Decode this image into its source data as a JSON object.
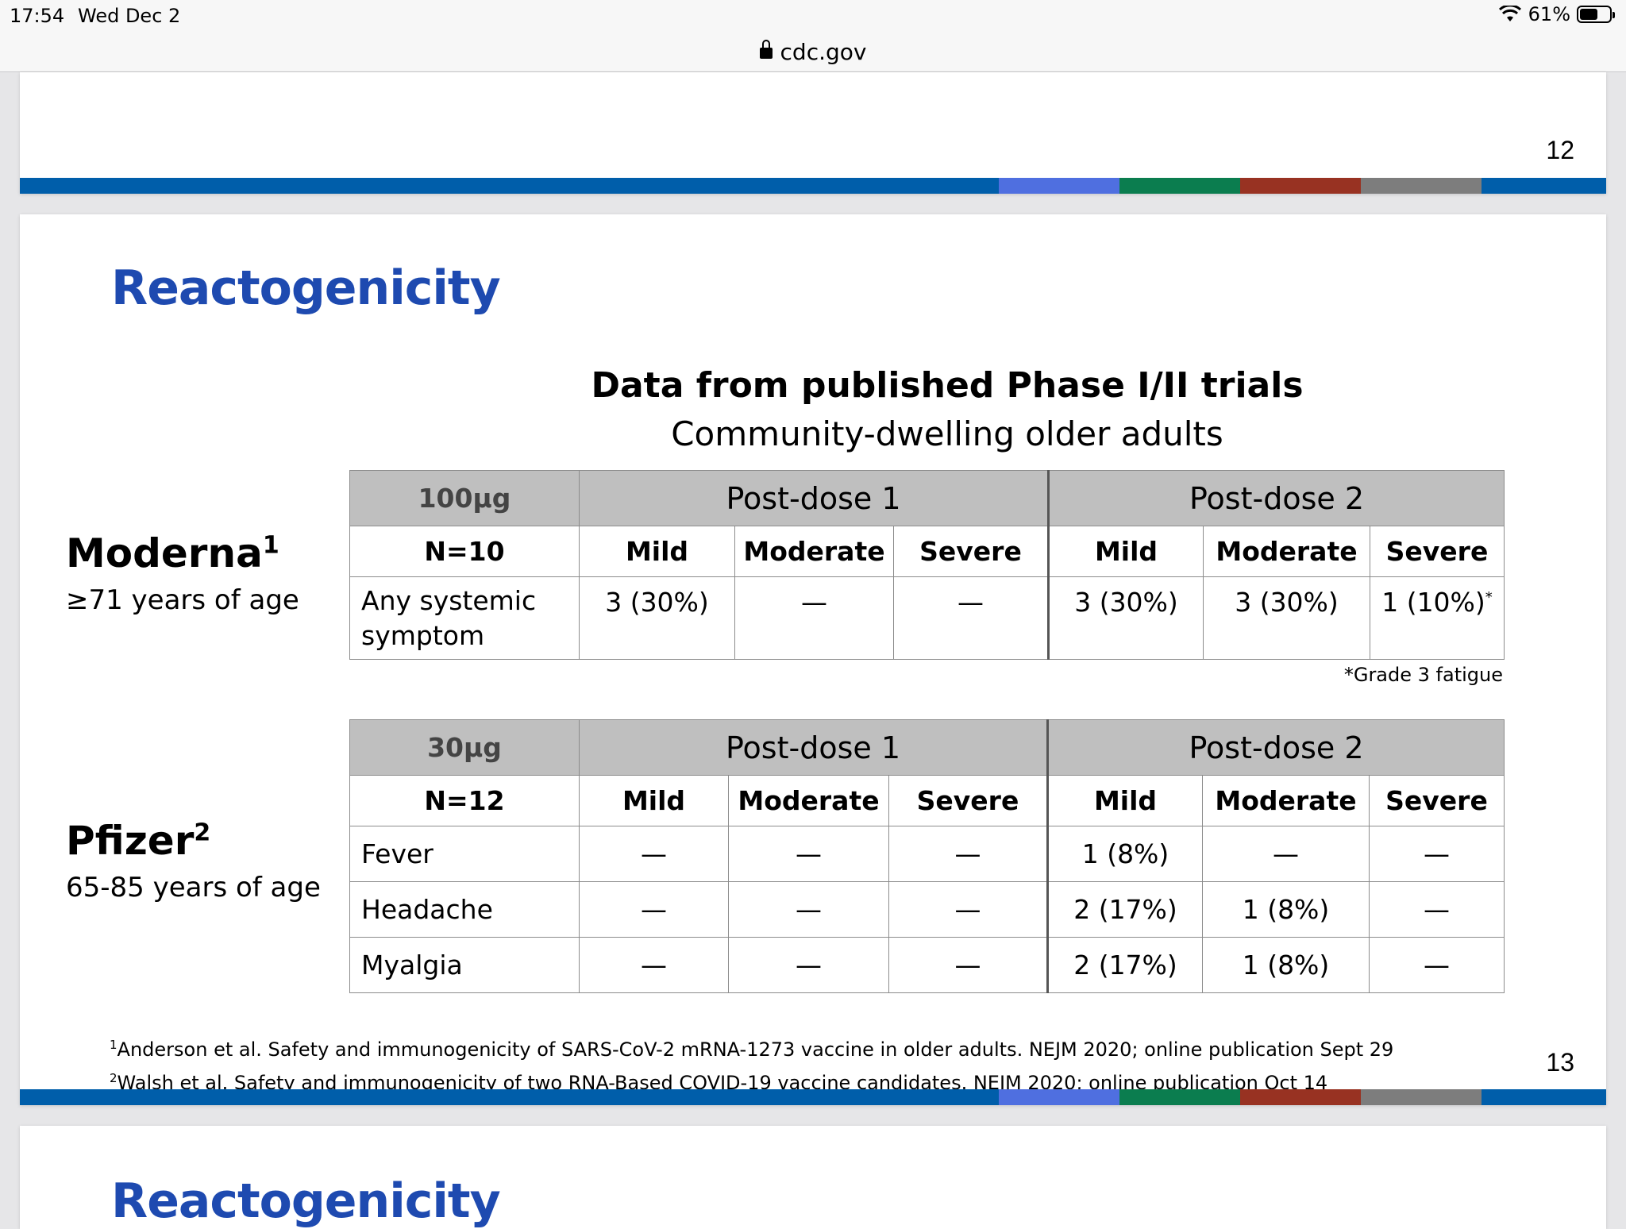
{
  "status_bar": {
    "time": "17:54",
    "date": "Wed Dec 2",
    "battery": "61%",
    "battery_level": 0.61
  },
  "browser": {
    "url": "cdc.gov"
  },
  "prev_slide": {
    "page_number": "12"
  },
  "slide": {
    "title": "Reactogenicity",
    "heading": "Data from published Phase I/II trials",
    "subheading": "Community-dwelling older adults",
    "page_number": "13",
    "moderna": {
      "name": "Moderna",
      "sup": "1",
      "age": "≥71 years of age",
      "table": {
        "dose": "100µg",
        "post_dose_1": "Post-dose 1",
        "post_dose_2": "Post-dose 2",
        "n": "N=10",
        "mild": "Mild",
        "moderate": "Moderate",
        "severe": "Severe",
        "rows": [
          {
            "label": "Any systemic symptom",
            "pd1_mild": "3 (30%)",
            "pd1_moderate": "—",
            "pd1_severe": "—",
            "pd2_mild": "3 (30%)",
            "pd2_moderate": "3 (30%)",
            "pd2_severe": "1 (10%)",
            "pd2_severe_mark": "*"
          }
        ]
      },
      "footnote": "*Grade 3 fatigue"
    },
    "pfizer": {
      "name": "Pfizer",
      "sup": "2",
      "age": "65-85 years of age",
      "table": {
        "dose": "30µg",
        "post_dose_1": "Post-dose 1",
        "post_dose_2": "Post-dose 2",
        "n": "N=12",
        "mild": "Mild",
        "moderate": "Moderate",
        "severe": "Severe",
        "rows": [
          {
            "label": "Fever",
            "pd1_mild": "—",
            "pd1_moderate": "—",
            "pd1_severe": "—",
            "pd2_mild": "1 (8%)",
            "pd2_moderate": "—",
            "pd2_severe": "—"
          },
          {
            "label": "Headache",
            "pd1_mild": "—",
            "pd1_moderate": "—",
            "pd1_severe": "—",
            "pd2_mild": "2 (17%)",
            "pd2_moderate": "1 (8%)",
            "pd2_severe": "—"
          },
          {
            "label": "Myalgia",
            "pd1_mild": "—",
            "pd1_moderate": "—",
            "pd1_severe": "—",
            "pd2_mild": "2 (17%)",
            "pd2_moderate": "1 (8%)",
            "pd2_severe": "—"
          }
        ]
      }
    },
    "references": [
      {
        "num": "1",
        "text": "Anderson et al. Safety and immunogenicity of SARS-CoV-2 mRNA-1273 vaccine in older adults. NEJM 2020; online publication Sept 29"
      },
      {
        "num": "2",
        "text": "Walsh et al. Safety and immunogenicity of two RNA-Based COVID-19 vaccine candidates. NEJM 2020; online publication Oct 14"
      }
    ]
  },
  "next_slide": {
    "title": "Reactogenicity"
  }
}
